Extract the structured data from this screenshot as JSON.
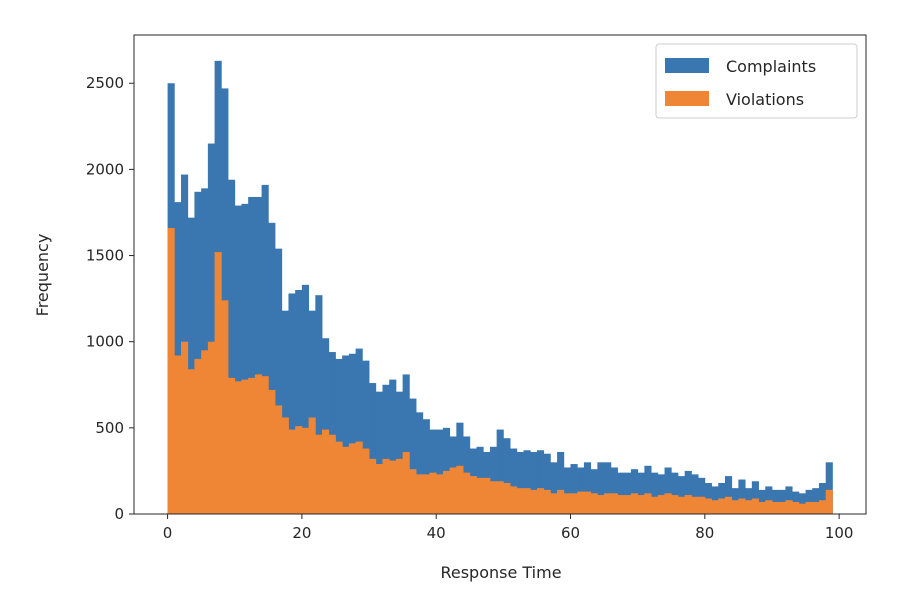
{
  "chart_data": {
    "type": "bar",
    "subtype": "overlaid-histogram",
    "title": "",
    "xlabel": "Response Time",
    "ylabel": "Frequency",
    "xlim": [
      -5,
      104
    ],
    "ylim": [
      0,
      2780
    ],
    "xticks": [
      0,
      20,
      40,
      60,
      80,
      100
    ],
    "yticks": [
      0,
      500,
      1000,
      1500,
      2000,
      2500
    ],
    "grid": false,
    "legend": {
      "placement": "top-right"
    },
    "bin_width": 1,
    "x": [
      0,
      1,
      2,
      3,
      4,
      5,
      6,
      7,
      8,
      9,
      10,
      11,
      12,
      13,
      14,
      15,
      16,
      17,
      18,
      19,
      20,
      21,
      22,
      23,
      24,
      25,
      26,
      27,
      28,
      29,
      30,
      31,
      32,
      33,
      34,
      35,
      36,
      37,
      38,
      39,
      40,
      41,
      42,
      43,
      44,
      45,
      46,
      47,
      48,
      49,
      50,
      51,
      52,
      53,
      54,
      55,
      56,
      57,
      58,
      59,
      60,
      61,
      62,
      63,
      64,
      65,
      66,
      67,
      68,
      69,
      70,
      71,
      72,
      73,
      74,
      75,
      76,
      77,
      78,
      79,
      80,
      81,
      82,
      83,
      84,
      85,
      86,
      87,
      88,
      89,
      90,
      91,
      92,
      93,
      94,
      95,
      96,
      97,
      98
    ],
    "series": [
      {
        "name": "Complaints",
        "color": "#3a76af",
        "values": [
          2500,
          1810,
          1970,
          1720,
          1870,
          1890,
          2150,
          2630,
          2470,
          1940,
          1790,
          1800,
          1840,
          1840,
          1910,
          1690,
          1540,
          1180,
          1280,
          1300,
          1330,
          1180,
          1270,
          1020,
          940,
          900,
          920,
          930,
          960,
          890,
          760,
          710,
          750,
          780,
          710,
          810,
          670,
          590,
          550,
          490,
          490,
          500,
          450,
          530,
          450,
          380,
          390,
          360,
          390,
          490,
          440,
          380,
          360,
          370,
          360,
          370,
          350,
          300,
          360,
          270,
          290,
          270,
          300,
          260,
          300,
          300,
          270,
          240,
          240,
          260,
          240,
          280,
          240,
          230,
          270,
          240,
          220,
          250,
          230,
          210,
          180,
          160,
          180,
          220,
          150,
          200,
          150,
          190,
          140,
          160,
          140,
          140,
          160,
          130,
          120,
          140,
          150,
          180,
          300
        ]
      },
      {
        "name": "Violations",
        "color": "#ef8636",
        "values": [
          1660,
          920,
          1000,
          840,
          900,
          950,
          1000,
          1520,
          1240,
          790,
          770,
          780,
          790,
          810,
          800,
          720,
          630,
          560,
          490,
          510,
          500,
          560,
          460,
          490,
          460,
          420,
          390,
          410,
          420,
          380,
          320,
          290,
          320,
          310,
          320,
          360,
          260,
          230,
          230,
          240,
          230,
          250,
          270,
          280,
          240,
          220,
          210,
          210,
          190,
          190,
          180,
          160,
          150,
          150,
          140,
          150,
          140,
          120,
          140,
          120,
          120,
          130,
          130,
          120,
          110,
          120,
          120,
          110,
          110,
          120,
          110,
          120,
          100,
          110,
          120,
          110,
          100,
          110,
          100,
          100,
          90,
          80,
          90,
          100,
          80,
          90,
          80,
          90,
          70,
          80,
          70,
          70,
          80,
          70,
          60,
          70,
          70,
          80,
          140
        ]
      }
    ]
  }
}
